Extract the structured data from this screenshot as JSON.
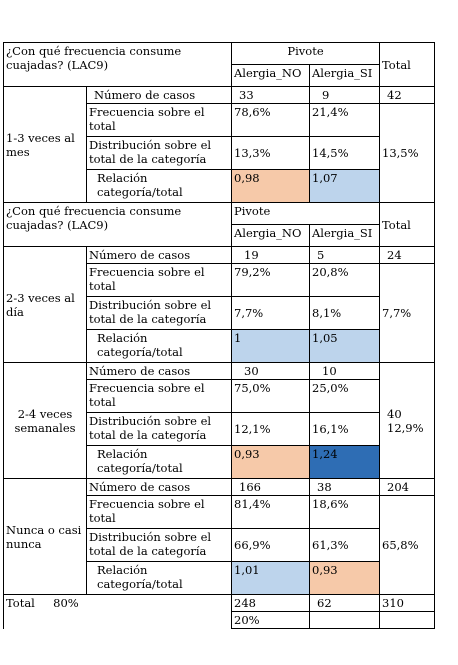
{
  "question": "¿Con qué frecuencia consume cuajadas? (LAC9)",
  "pivot_label": "Pivote",
  "col_no": "Alergia_NO",
  "col_si": "Alergia_SI",
  "total_label": "Total",
  "row_labels": {
    "cases": "Número de casos",
    "freq": "Frecuencia sobre el total",
    "dist": "Distribución sobre el total de la categoría",
    "rel": "Relación categoría/total"
  },
  "colors": {
    "peach": "#f6c9a9",
    "light_blue": "#bdd4ec",
    "dark_blue": "#2e6db4"
  },
  "groups": [
    {
      "name": "1-3 veces al mes",
      "cases": [
        "33",
        "9",
        "42"
      ],
      "freq": [
        "78,6%",
        "21,4%"
      ],
      "dist": [
        "13,3%",
        "14,5%"
      ],
      "total_pct": "13,5%",
      "rel": [
        "0,98",
        "1,07"
      ],
      "rel_colors": [
        "#f6c9a9",
        "#bdd4ec"
      ]
    },
    {
      "name": "2-3 veces al día",
      "cases": [
        "19",
        "5",
        "24"
      ],
      "freq": [
        "79,2%",
        "20,8%"
      ],
      "dist": [
        "7,7%",
        "8,1%"
      ],
      "total_pct": "7,7%",
      "rel": [
        "1",
        "1,05"
      ],
      "rel_colors": [
        "#bdd4ec",
        "#bdd4ec"
      ]
    },
    {
      "name": "2-4 veces semanales",
      "cases": [
        "30",
        "10",
        "40"
      ],
      "freq": [
        "75,0%",
        "25,0%"
      ],
      "dist": [
        "12,1%",
        "16,1%"
      ],
      "total_pct": "12,9%",
      "rel": [
        "0,93",
        "1,24"
      ],
      "rel_colors": [
        "#f6c9a9",
        "#2e6db4"
      ]
    },
    {
      "name": "Nunca o casi nunca",
      "cases": [
        "166",
        "38",
        "204"
      ],
      "freq": [
        "81,4%",
        "18,6%"
      ],
      "dist": [
        "66,9%",
        "61,3%"
      ],
      "total_pct": "65,8%",
      "rel": [
        "1,01",
        "0,93"
      ],
      "rel_colors": [
        "#bdd4ec",
        "#f6c9a9"
      ]
    }
  ],
  "footer": {
    "label": "Total",
    "pct": "80%",
    "no": "248",
    "si": "62",
    "total": "310",
    "no_pct": "20%"
  }
}
